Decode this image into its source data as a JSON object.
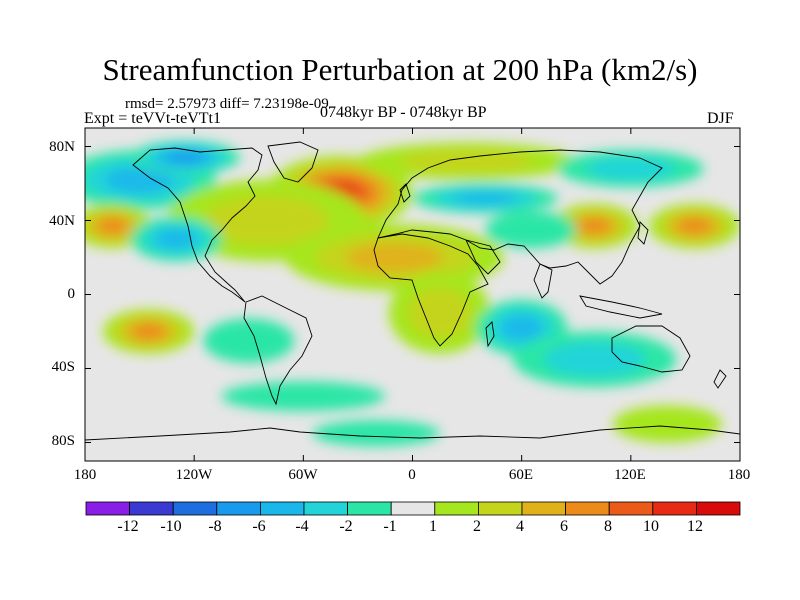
{
  "title": "Streamfunction Perturbation at 200 hPa (km2/s)",
  "stats": "rmsd= 2.57973  diff= 7.23198e-09",
  "experiment": "Expt = teVVt-teVTt1",
  "period": "0748kyr BP - 0748kyr BP",
  "season": "DJF",
  "lat_labels": [
    "80N",
    "40N",
    "0",
    "40S",
    "80S"
  ],
  "lat_values": [
    80,
    40,
    0,
    -40,
    -80
  ],
  "lon_labels": [
    "180",
    "120W",
    "60W",
    "0",
    "60E",
    "120E",
    "180"
  ],
  "lon_values": [
    -180,
    -120,
    -60,
    0,
    60,
    120,
    180
  ],
  "colorbar": {
    "labels": [
      "-12",
      "-10",
      "-8",
      "-6",
      "-4",
      "-2",
      "-1",
      "1",
      "2",
      "4",
      "6",
      "8",
      "10",
      "12"
    ],
    "colors": [
      "#8a1ee6",
      "#3a3ad2",
      "#1f6ee0",
      "#1a9aee",
      "#1ab8ea",
      "#22d4d8",
      "#2ae6a6",
      "#e6e6e6",
      "#a6e61e",
      "#c4d41a",
      "#e0b21a",
      "#ec8a1a",
      "#ec5a1a",
      "#e62a14",
      "#d80a0a"
    ]
  },
  "fields": [
    {
      "lon": -150,
      "lat": 62,
      "rlon": 42,
      "rlat": 16,
      "level": 4
    },
    {
      "lon": -125,
      "lat": 74,
      "rlon": 30,
      "rlat": 9,
      "level": 3
    },
    {
      "lon": -40,
      "lat": 55,
      "rlon": 40,
      "rlat": 20,
      "level": 13
    },
    {
      "lon": -80,
      "lat": 40,
      "rlon": 55,
      "rlat": 22,
      "level": 9
    },
    {
      "lon": 30,
      "lat": 72,
      "rlon": 60,
      "rlat": 10,
      "level": 9
    },
    {
      "lon": 40,
      "lat": 52,
      "rlon": 40,
      "rlat": 8,
      "level": 4
    },
    {
      "lon": 120,
      "lat": 68,
      "rlon": 40,
      "rlat": 10,
      "level": 5
    },
    {
      "lon": -165,
      "lat": 37,
      "rlon": 22,
      "rlat": 12,
      "level": 11
    },
    {
      "lon": 100,
      "lat": 37,
      "rlon": 24,
      "rlat": 12,
      "level": 11
    },
    {
      "lon": 155,
      "lat": 37,
      "rlon": 25,
      "rlat": 12,
      "level": 11
    },
    {
      "lon": -130,
      "lat": 30,
      "rlon": 25,
      "rlat": 12,
      "level": 4
    },
    {
      "lon": -10,
      "lat": 20,
      "rlon": 60,
      "rlat": 18,
      "level": 10
    },
    {
      "lon": 65,
      "lat": 35,
      "rlon": 25,
      "rlat": 10,
      "level": 6
    },
    {
      "lon": -145,
      "lat": -20,
      "rlon": 25,
      "rlat": 12,
      "level": 11
    },
    {
      "lon": -90,
      "lat": -25,
      "rlon": 25,
      "rlat": 12,
      "level": 6
    },
    {
      "lon": 15,
      "lat": -10,
      "rlon": 28,
      "rlat": 22,
      "level": 9
    },
    {
      "lon": 60,
      "lat": -18,
      "rlon": 25,
      "rlat": 15,
      "level": 4
    },
    {
      "lon": 100,
      "lat": -35,
      "rlon": 45,
      "rlat": 15,
      "level": 5
    },
    {
      "lon": -60,
      "lat": -55,
      "rlon": 45,
      "rlat": 8,
      "level": 6
    },
    {
      "lon": -20,
      "lat": -75,
      "rlon": 35,
      "rlat": 7,
      "level": 6
    },
    {
      "lon": 140,
      "lat": -70,
      "rlon": 30,
      "rlat": 10,
      "level": 8
    }
  ]
}
